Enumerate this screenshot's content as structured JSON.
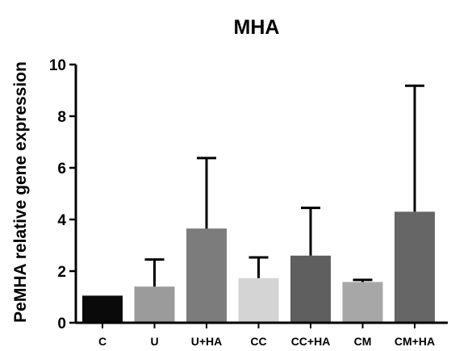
{
  "chart_data": {
    "type": "bar",
    "title": "MHA",
    "xlabel": "",
    "ylabel": "PeMHA relative gene expression",
    "ylim": [
      0,
      10
    ],
    "yticks": [
      0,
      2,
      4,
      6,
      8,
      10
    ],
    "categories": [
      "C",
      "U",
      "U+HA",
      "CC",
      "CC+HA",
      "CM",
      "CM+HA"
    ],
    "values": [
      1.05,
      1.4,
      3.65,
      1.73,
      2.6,
      1.58,
      4.3
    ],
    "error_upper": [
      0,
      1.05,
      2.73,
      0.8,
      1.85,
      0.08,
      4.88
    ],
    "colors": [
      "#0a0a0a",
      "#9b9b9b",
      "#7c7c7c",
      "#d4d4d4",
      "#5f5f5f",
      "#a7a7a7",
      "#666666"
    ],
    "grid": false,
    "legend": "none"
  }
}
